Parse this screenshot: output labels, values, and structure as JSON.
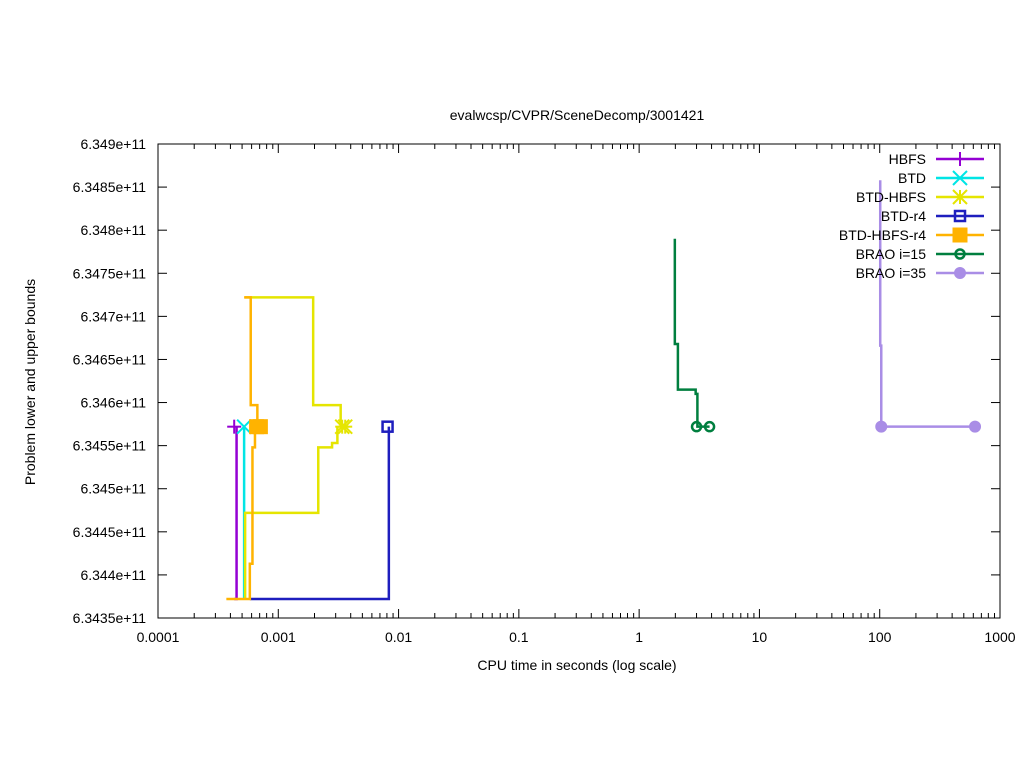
{
  "chart_data": {
    "type": "line",
    "title": "evalwcsp/CVPR/SceneDecomp/3001421",
    "xlabel": "CPU time in seconds (log scale)",
    "ylabel": "Problem lower and upper bounds",
    "xscale": "log",
    "xlim": [
      0.0001,
      1000
    ],
    "ylim": [
      634350000000,
      634900000000
    ],
    "x_ticks": [
      {
        "value": 0.0001,
        "label": "0.0001"
      },
      {
        "value": 0.001,
        "label": "0.001"
      },
      {
        "value": 0.01,
        "label": "0.01"
      },
      {
        "value": 0.1,
        "label": "0.1"
      },
      {
        "value": 1,
        "label": "1"
      },
      {
        "value": 10,
        "label": "10"
      },
      {
        "value": 100,
        "label": "100"
      },
      {
        "value": 1000,
        "label": "1000"
      }
    ],
    "y_ticks": [
      {
        "value": 634350000000,
        "label": "6.3435e+11"
      },
      {
        "value": 634400000000,
        "label": "6.344e+11"
      },
      {
        "value": 634450000000,
        "label": "6.3445e+11"
      },
      {
        "value": 634500000000,
        "label": "6.345e+11"
      },
      {
        "value": 634550000000,
        "label": "6.3455e+11"
      },
      {
        "value": 634600000000,
        "label": "6.346e+11"
      },
      {
        "value": 634650000000,
        "label": "6.3465e+11"
      },
      {
        "value": 634700000000,
        "label": "6.347e+11"
      },
      {
        "value": 634750000000,
        "label": "6.3475e+11"
      },
      {
        "value": 634800000000,
        "label": "6.348e+11"
      },
      {
        "value": 634850000000,
        "label": "6.3485e+11"
      },
      {
        "value": 634900000000,
        "label": "6.349e+11"
      }
    ],
    "grid": false,
    "legend_position": "top-right",
    "series": [
      {
        "name": "HBFS",
        "color": "#9400d3",
        "marker": "plus",
        "paths": [
          [
            [
              0.00043,
              634372000000
            ],
            [
              0.00045,
              634372000000
            ],
            [
              0.00045,
              634572000000
            ]
          ]
        ],
        "markers": [
          [
            0.00043,
            634572000000
          ]
        ]
      },
      {
        "name": "BTD",
        "color": "#00e5e5",
        "marker": "x",
        "paths": [
          [
            [
              0.00052,
              634372000000
            ],
            [
              0.00052,
              634572000000
            ]
          ]
        ],
        "markers": [
          [
            0.00052,
            634572000000
          ]
        ]
      },
      {
        "name": "BTD-HBFS",
        "color": "#e5e500",
        "marker": "star",
        "paths": [
          [
            [
              0.00053,
              634372000000
            ],
            [
              0.00053,
              634472000000
            ],
            [
              0.00215,
              634472000000
            ],
            [
              0.00215,
              634548000000
            ],
            [
              0.0028,
              634548000000
            ],
            [
              0.0028,
              634553000000
            ],
            [
              0.0031,
              634553000000
            ],
            [
              0.0031,
              634572000000
            ]
          ],
          [
            [
              0.00053,
              634722000000
            ],
            [
              0.00195,
              634722000000
            ],
            [
              0.00195,
              634597000000
            ],
            [
              0.0033,
              634597000000
            ],
            [
              0.0033,
              634572000000
            ]
          ]
        ],
        "markers": [
          [
            0.0034,
            634572000000
          ],
          [
            0.0036,
            634572000000
          ]
        ]
      },
      {
        "name": "BTD-r4",
        "color": "#1e1ebe",
        "marker": "open-square",
        "paths": [
          [
            [
              0.00058,
              634372000000
            ],
            [
              0.0083,
              634372000000
            ],
            [
              0.0083,
              634572000000
            ]
          ]
        ],
        "markers": [
          [
            0.0081,
            634572000000
          ]
        ]
      },
      {
        "name": "BTD-HBFS-r4",
        "color": "#ffb300",
        "marker": "filled-square",
        "paths": [
          [
            [
              0.00037,
              634372000000
            ],
            [
              0.00058,
              634372000000
            ],
            [
              0.00058,
              634413000000
            ],
            [
              0.00061,
              634413000000
            ],
            [
              0.00061,
              634548000000
            ],
            [
              0.00064,
              634548000000
            ],
            [
              0.00064,
              634572000000
            ]
          ],
          [
            [
              0.00052,
              634722000000
            ],
            [
              0.00059,
              634722000000
            ],
            [
              0.00059,
              634597000000
            ],
            [
              0.00067,
              634597000000
            ],
            [
              0.00067,
              634572000000
            ]
          ]
        ],
        "markers": [
          [
            0.00066,
            634572000000
          ],
          [
            0.00071,
            634572000000
          ]
        ]
      },
      {
        "name": "BRAO i=15",
        "color": "#007f3f",
        "marker": "open-circle",
        "paths": [
          [
            [
              1.98,
              634790000000
            ],
            [
              1.98,
              634668000000
            ],
            [
              2.1,
              634668000000
            ],
            [
              2.1,
              634615000000
            ],
            [
              2.95,
              634615000000
            ],
            [
              2.95,
              634610000000
            ],
            [
              3.05,
              634610000000
            ],
            [
              3.05,
              634572000000
            ],
            [
              3.85,
              634572000000
            ]
          ]
        ],
        "markers": [
          [
            3.0,
            634572000000
          ],
          [
            3.85,
            634572000000
          ]
        ]
      },
      {
        "name": "BRAO i=35",
        "color": "#a98de6",
        "marker": "filled-circle",
        "paths": [
          [
            [
              101,
              634858000000
            ],
            [
              101,
              634666000000
            ],
            [
              103,
              634666000000
            ],
            [
              103,
              634572000000
            ],
            [
              620,
              634572000000
            ]
          ]
        ],
        "markers": [
          [
            103,
            634572000000
          ],
          [
            620,
            634572000000
          ]
        ]
      }
    ]
  }
}
